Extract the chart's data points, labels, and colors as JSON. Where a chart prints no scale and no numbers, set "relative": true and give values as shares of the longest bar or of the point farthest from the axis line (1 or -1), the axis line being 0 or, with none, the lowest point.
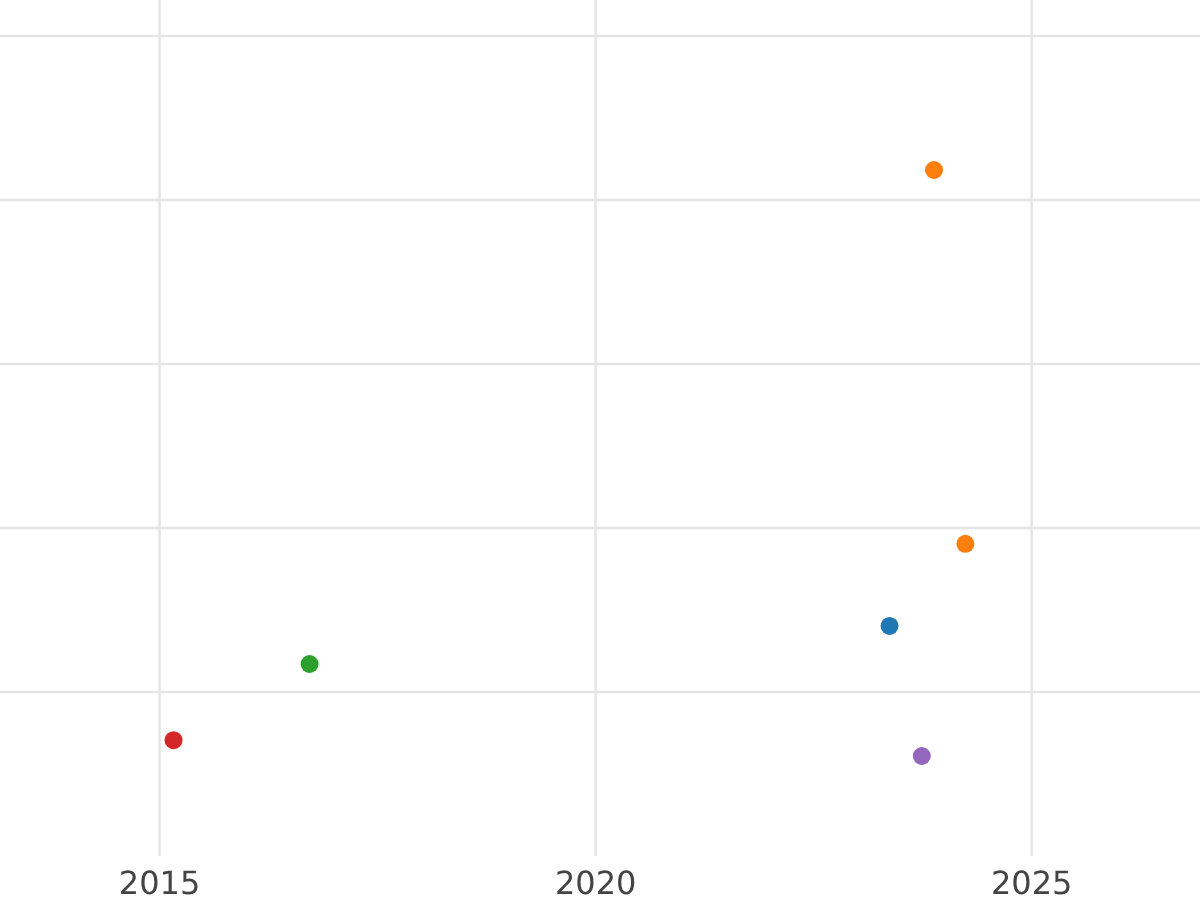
{
  "chart_data": {
    "type": "scatter",
    "relative": true,
    "x": [
      2023.37,
      2023.88,
      2024.24,
      2016.72,
      2015.16,
      2023.74
    ],
    "values": [
      0.222,
      1,
      0.362,
      0.157,
      0.027,
      0
    ],
    "colors": [
      "#1f77b4",
      "#ff7f0e",
      "#ff7f0e",
      "#2ca02c",
      "#d62728",
      "#9467bd"
    ],
    "xlim": [
      2013.17,
      2026.93
    ],
    "xticks": [
      2015,
      2020,
      2025
    ],
    "grid": true,
    "marker": "circle"
  }
}
